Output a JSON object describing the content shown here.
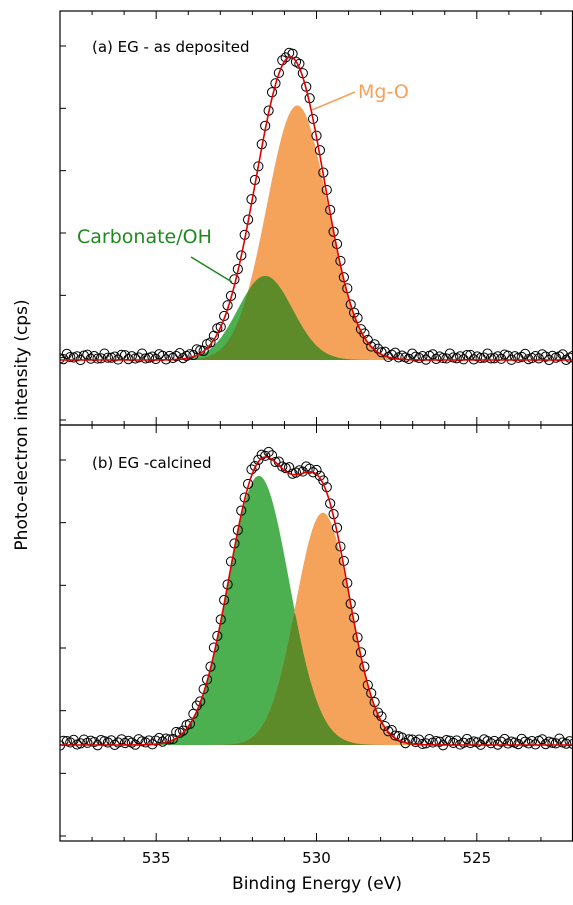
{
  "chart_data": {
    "type": "area",
    "xlabel": "Binding Energy (eV)",
    "ylabel": "Photo-electron intensity (cps)",
    "x_reversed": true,
    "xlim": [
      538,
      522
    ],
    "x_ticks": [
      535,
      530,
      525
    ],
    "x_tick_labels": [
      "535",
      "530",
      "525"
    ],
    "y_ticks_labeled": false,
    "colors": {
      "mg_o": "#f5a25a",
      "carbonate": "#4caf50",
      "overlap": "#5e8b2a",
      "fit": "#e00000",
      "data_marker": "#000000"
    },
    "panels": [
      {
        "id": "a",
        "label": "(a) EG - as deposited",
        "background": 0.0,
        "data_points": 150,
        "components": [
          {
            "name": "Mg-O",
            "center": 530.6,
            "sigma": 0.95,
            "amplitude": 1.0,
            "color": "mg_o"
          },
          {
            "name": "Carbonate/OH",
            "center": 531.6,
            "sigma": 0.85,
            "amplitude": 0.33,
            "color": "carbonate"
          }
        ],
        "annotations": [
          {
            "text": "Mg-O",
            "color": "mg_o"
          },
          {
            "text": "Carbonate/OH",
            "color": "carbonate"
          }
        ]
      },
      {
        "id": "b",
        "label": "(b) EG -calcined",
        "background": 0.0,
        "data_points": 150,
        "components": [
          {
            "name": "Carbonate/OH",
            "center": 531.8,
            "sigma": 0.95,
            "amplitude": 0.95,
            "color": "carbonate"
          },
          {
            "name": "Mg-O",
            "center": 529.8,
            "sigma": 0.85,
            "amplitude": 0.82,
            "color": "mg_o"
          }
        ],
        "annotations": []
      }
    ]
  }
}
